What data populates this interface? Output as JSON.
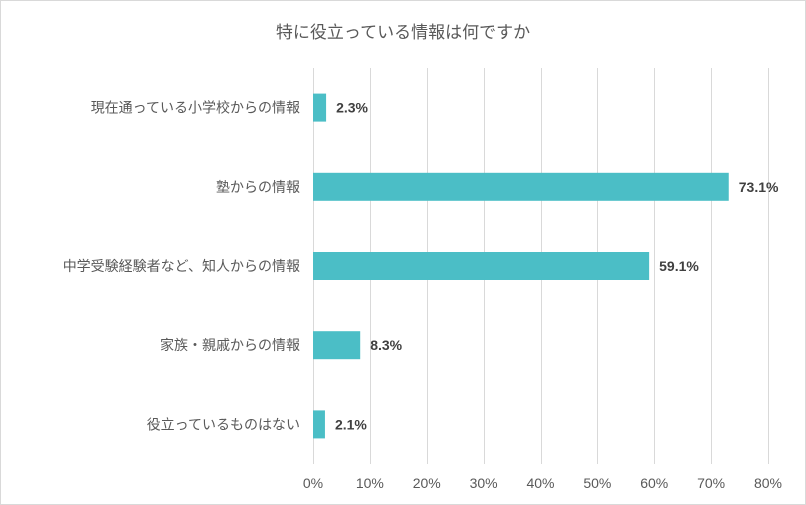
{
  "chart_data": {
    "type": "bar",
    "orientation": "horizontal",
    "title": "特に役立っている情報は何ですか",
    "categories": [
      "現在通っている小学校からの情報",
      "塾からの情報",
      "中学受験経験者など、知人からの情報",
      "家族・親戚からの情報",
      "役立っているものはない"
    ],
    "values": [
      2.3,
      73.1,
      59.1,
      8.3,
      2.1
    ],
    "data_labels": [
      "2.3%",
      "73.1%",
      "59.1%",
      "8.3%",
      "2.1%"
    ],
    "xlim": [
      0,
      80
    ],
    "xticks": [
      0,
      10,
      20,
      30,
      40,
      50,
      60,
      70,
      80
    ],
    "xtick_labels": [
      "0%",
      "10%",
      "20%",
      "30%",
      "40%",
      "50%",
      "60%",
      "70%",
      "80%"
    ],
    "grid": "vertical",
    "bar_color": "#4bbec6",
    "gridline_color": "#d9d9d9"
  }
}
